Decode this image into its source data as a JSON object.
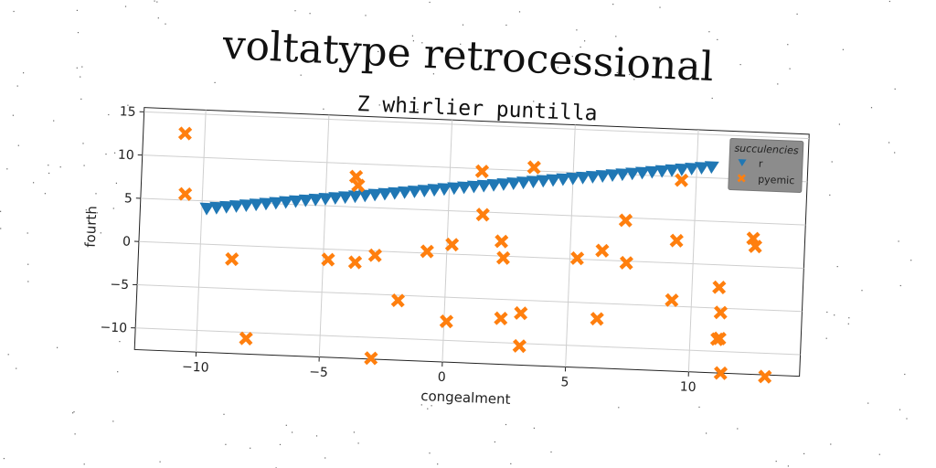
{
  "page_title": "voltatype retrocessional",
  "chart_data": {
    "type": "scatter",
    "title": "Z whirlier puntilla",
    "xlabel": "congealment",
    "ylabel": "fourth",
    "xlim": [
      -12.5,
      14.5
    ],
    "ylim": [
      -12.5,
      15.5
    ],
    "xticks": [
      -10,
      -5,
      0,
      5,
      10
    ],
    "yticks": [
      -10,
      -5,
      0,
      5,
      10,
      15
    ],
    "grid": true,
    "legend": {
      "title": "succulencies",
      "placement": "top-right"
    },
    "series": [
      {
        "name": "r",
        "marker": "triangle-down",
        "color": "#1f77b4",
        "x": [
          -9.8,
          -9.4,
          -9.0,
          -8.6,
          -8.2,
          -7.8,
          -7.4,
          -7.0,
          -6.6,
          -6.2,
          -5.8,
          -5.4,
          -5.0,
          -4.6,
          -4.2,
          -3.8,
          -3.4,
          -3.0,
          -2.6,
          -2.2,
          -1.8,
          -1.4,
          -1.0,
          -0.6,
          -0.2,
          0.2,
          0.6,
          1.0,
          1.4,
          1.8,
          2.2,
          2.6,
          3.0,
          3.4,
          3.8,
          4.2,
          4.6,
          5.0,
          5.4,
          5.8,
          6.2,
          6.6,
          7.0,
          7.4,
          7.8,
          8.2,
          8.6,
          9.0,
          9.4,
          9.8,
          10.2,
          10.6
        ],
        "y": [
          4.1,
          4.24,
          4.38,
          4.52,
          4.66,
          4.8,
          4.94,
          5.08,
          5.22,
          5.36,
          5.5,
          5.64,
          5.78,
          5.92,
          6.06,
          6.2,
          6.34,
          6.48,
          6.62,
          6.76,
          6.9,
          7.04,
          7.18,
          7.32,
          7.46,
          7.6,
          7.74,
          7.88,
          8.02,
          8.16,
          8.3,
          8.44,
          8.58,
          8.72,
          8.86,
          9.0,
          9.14,
          9.28,
          9.42,
          9.56,
          9.7,
          9.84,
          9.98,
          10.12,
          10.26,
          10.4,
          10.54,
          10.68,
          10.82,
          10.96,
          11.1,
          11.24
        ]
      },
      {
        "name": "pyemic",
        "marker": "X",
        "color": "#ff7f0e",
        "x": [
          -10.8,
          -10.7,
          -8.7,
          -8.0,
          -4.8,
          -3.8,
          -3.7,
          -3.7,
          -2.9,
          -2.9,
          -1.9,
          -0.8,
          0.1,
          0.2,
          1.3,
          1.4,
          2.2,
          2.3,
          2.3,
          3.1,
          3.1,
          3.4,
          5.3,
          6.2,
          6.3,
          7.2,
          7.3,
          9.2,
          9.3,
          9.4,
          11.1,
          11.2,
          11.2,
          11.3,
          12.4,
          12.5,
          13.1,
          11.1
        ],
        "y": [
          12.7,
          5.7,
          -1.6,
          -10.7,
          -1.2,
          8.5,
          7.5,
          -1.4,
          -0.5,
          -12.4,
          -5.6,
          0.2,
          -7.8,
          1.1,
          9.7,
          4.7,
          1.7,
          -0.2,
          -7.2,
          -6.5,
          -10.3,
          10.4,
          0.1,
          -6.8,
          1.1,
          4.7,
          -0.2,
          -4.3,
          2.6,
          9.6,
          -2.6,
          -5.5,
          -8.5,
          -12.5,
          3.2,
          2.3,
          -12.7,
          -8.6
        ]
      }
    ]
  }
}
